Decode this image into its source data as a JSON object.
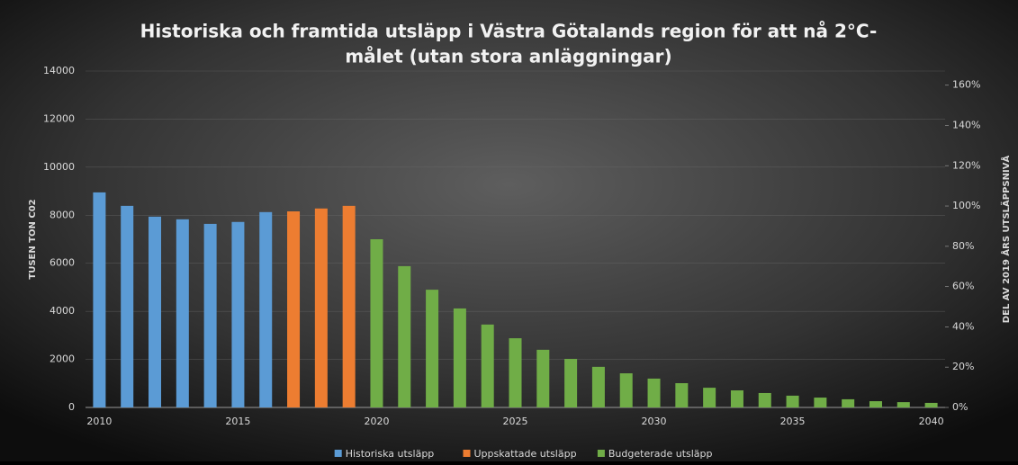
{
  "chart_data": {
    "type": "bar",
    "title": [
      "Historiska och framtida utsläpp i Västra Götalands region för att nå 2°C-",
      "målet (utan stora anläggningar)"
    ],
    "y_label": "TUSEN TON C02",
    "y2_label": "DEL AV 2019 ÅRS UTSLÄPPSNIVÅ",
    "xlim": [
      2009.5,
      2040.5
    ],
    "xticks": [
      2010,
      2015,
      2020,
      2025,
      2030,
      2035,
      2040
    ],
    "ylim": [
      0,
      14000
    ],
    "yticks": [
      0,
      2000,
      4000,
      6000,
      8000,
      10000,
      12000,
      14000
    ],
    "y2lim": [
      0,
      1.67
    ],
    "y2ticks": [
      {
        "value": 0,
        "label": "0%"
      },
      {
        "value": 0.2,
        "label": "20%"
      },
      {
        "value": 0.4,
        "label": "40%"
      },
      {
        "value": 0.6,
        "label": "60%"
      },
      {
        "value": 0.8,
        "label": "80%"
      },
      {
        "value": 1.0,
        "label": "100%"
      },
      {
        "value": 1.2,
        "label": "120%"
      },
      {
        "value": 1.4,
        "label": "140%"
      },
      {
        "value": 1.6,
        "label": "160%"
      }
    ],
    "grid": true,
    "legend": "bottom",
    "series": [
      {
        "name": "Historiska utsläpp",
        "color": "#5b9bd5",
        "x": [
          2010,
          2011,
          2012,
          2013,
          2014,
          2015,
          2016
        ],
        "values": [
          8950,
          8390,
          7940,
          7830,
          7640,
          7720,
          8130
        ]
      },
      {
        "name": "Uppskattade utsläpp",
        "color": "#ed7d31",
        "x": [
          2017,
          2018,
          2019
        ],
        "values": [
          8160,
          8280,
          8390
        ]
      },
      {
        "name": "Budgeterade utsläpp",
        "color": "#70ad47",
        "x": [
          2020,
          2021,
          2022,
          2023,
          2024,
          2025,
          2026,
          2027,
          2028,
          2029,
          2030,
          2031,
          2032,
          2033,
          2034,
          2035,
          2036,
          2037,
          2038,
          2039,
          2040
        ],
        "values": [
          7000,
          5880,
          4900,
          4120,
          3450,
          2880,
          2400,
          2020,
          1690,
          1420,
          1200,
          1010,
          820,
          710,
          600,
          490,
          410,
          340,
          260,
          220,
          190
        ]
      }
    ]
  }
}
